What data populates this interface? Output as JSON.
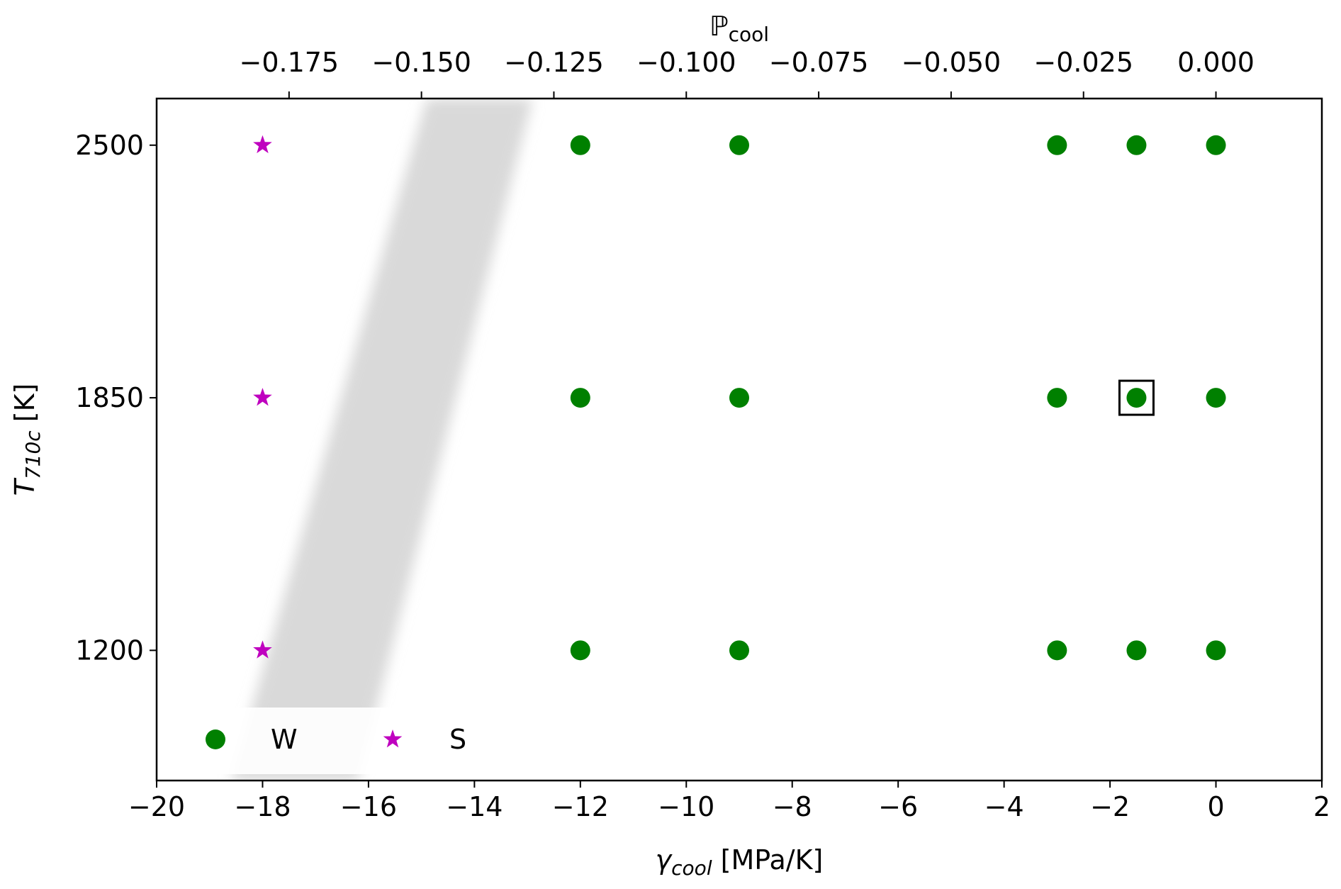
{
  "chart_data": {
    "type": "scatter",
    "xlabel_symbol": "γ",
    "xlabel_subscript": "cool",
    "xlabel_unit": " [MPa/K]",
    "top_xlabel_symbol": "ℙ",
    "top_xlabel_subscript": "cool",
    "ylabel_symbol": "T",
    "ylabel_subscript": "710c",
    "ylabel_unit": " [K]",
    "xlim": [
      -20,
      2
    ],
    "ylim": [
      865,
      2620
    ],
    "x_ticks": [
      -20,
      -18,
      -16,
      -14,
      -12,
      -10,
      -8,
      -6,
      -4,
      -2,
      0,
      2
    ],
    "x_tick_labels": [
      "−20",
      "−18",
      "−16",
      "−14",
      "−12",
      "−10",
      "−8",
      "−6",
      "−4",
      "−2",
      "0",
      "2"
    ],
    "y_ticks": [
      1200,
      1850,
      2500
    ],
    "y_tick_labels": [
      "1200",
      "1850",
      "2500"
    ],
    "top_x_ticks": [
      -0.175,
      -0.15,
      -0.125,
      -0.1,
      -0.075,
      -0.05,
      -0.025,
      0.0
    ],
    "top_x_tick_labels": [
      "−0.175",
      "−0.150",
      "−0.125",
      "−0.100",
      "−0.075",
      "−0.050",
      "−0.025",
      "0.000"
    ],
    "top_x_scale": 0.01,
    "series": [
      {
        "name": "W",
        "marker": "circle",
        "color": "#008000",
        "points": [
          [
            -12,
            2500
          ],
          [
            -9,
            2500
          ],
          [
            -3,
            2500
          ],
          [
            -1.5,
            2500
          ],
          [
            0,
            2500
          ],
          [
            -12,
            1850
          ],
          [
            -9,
            1850
          ],
          [
            -3,
            1850
          ],
          [
            -1.5,
            1850
          ],
          [
            0,
            1850
          ],
          [
            -12,
            1200
          ],
          [
            -9,
            1200
          ],
          [
            -3,
            1200
          ],
          [
            -1.5,
            1200
          ],
          [
            0,
            1200
          ]
        ]
      },
      {
        "name": "S",
        "marker": "star",
        "color": "#bf00bf",
        "points": [
          [
            -18,
            2500
          ],
          [
            -18,
            1850
          ],
          [
            -18,
            1200
          ]
        ]
      }
    ],
    "highlight": {
      "marker": "square",
      "point": [
        -1.5,
        1850
      ]
    },
    "shaded_band": {
      "color": "#d9d9d9",
      "top": {
        "y": 2620,
        "x_from": -14.9,
        "x_to": -12.9
      },
      "bottom": {
        "y": 865,
        "x_from": -18.6,
        "x_to": -16.2
      }
    },
    "legend_position": "lower-left",
    "grid": false
  }
}
